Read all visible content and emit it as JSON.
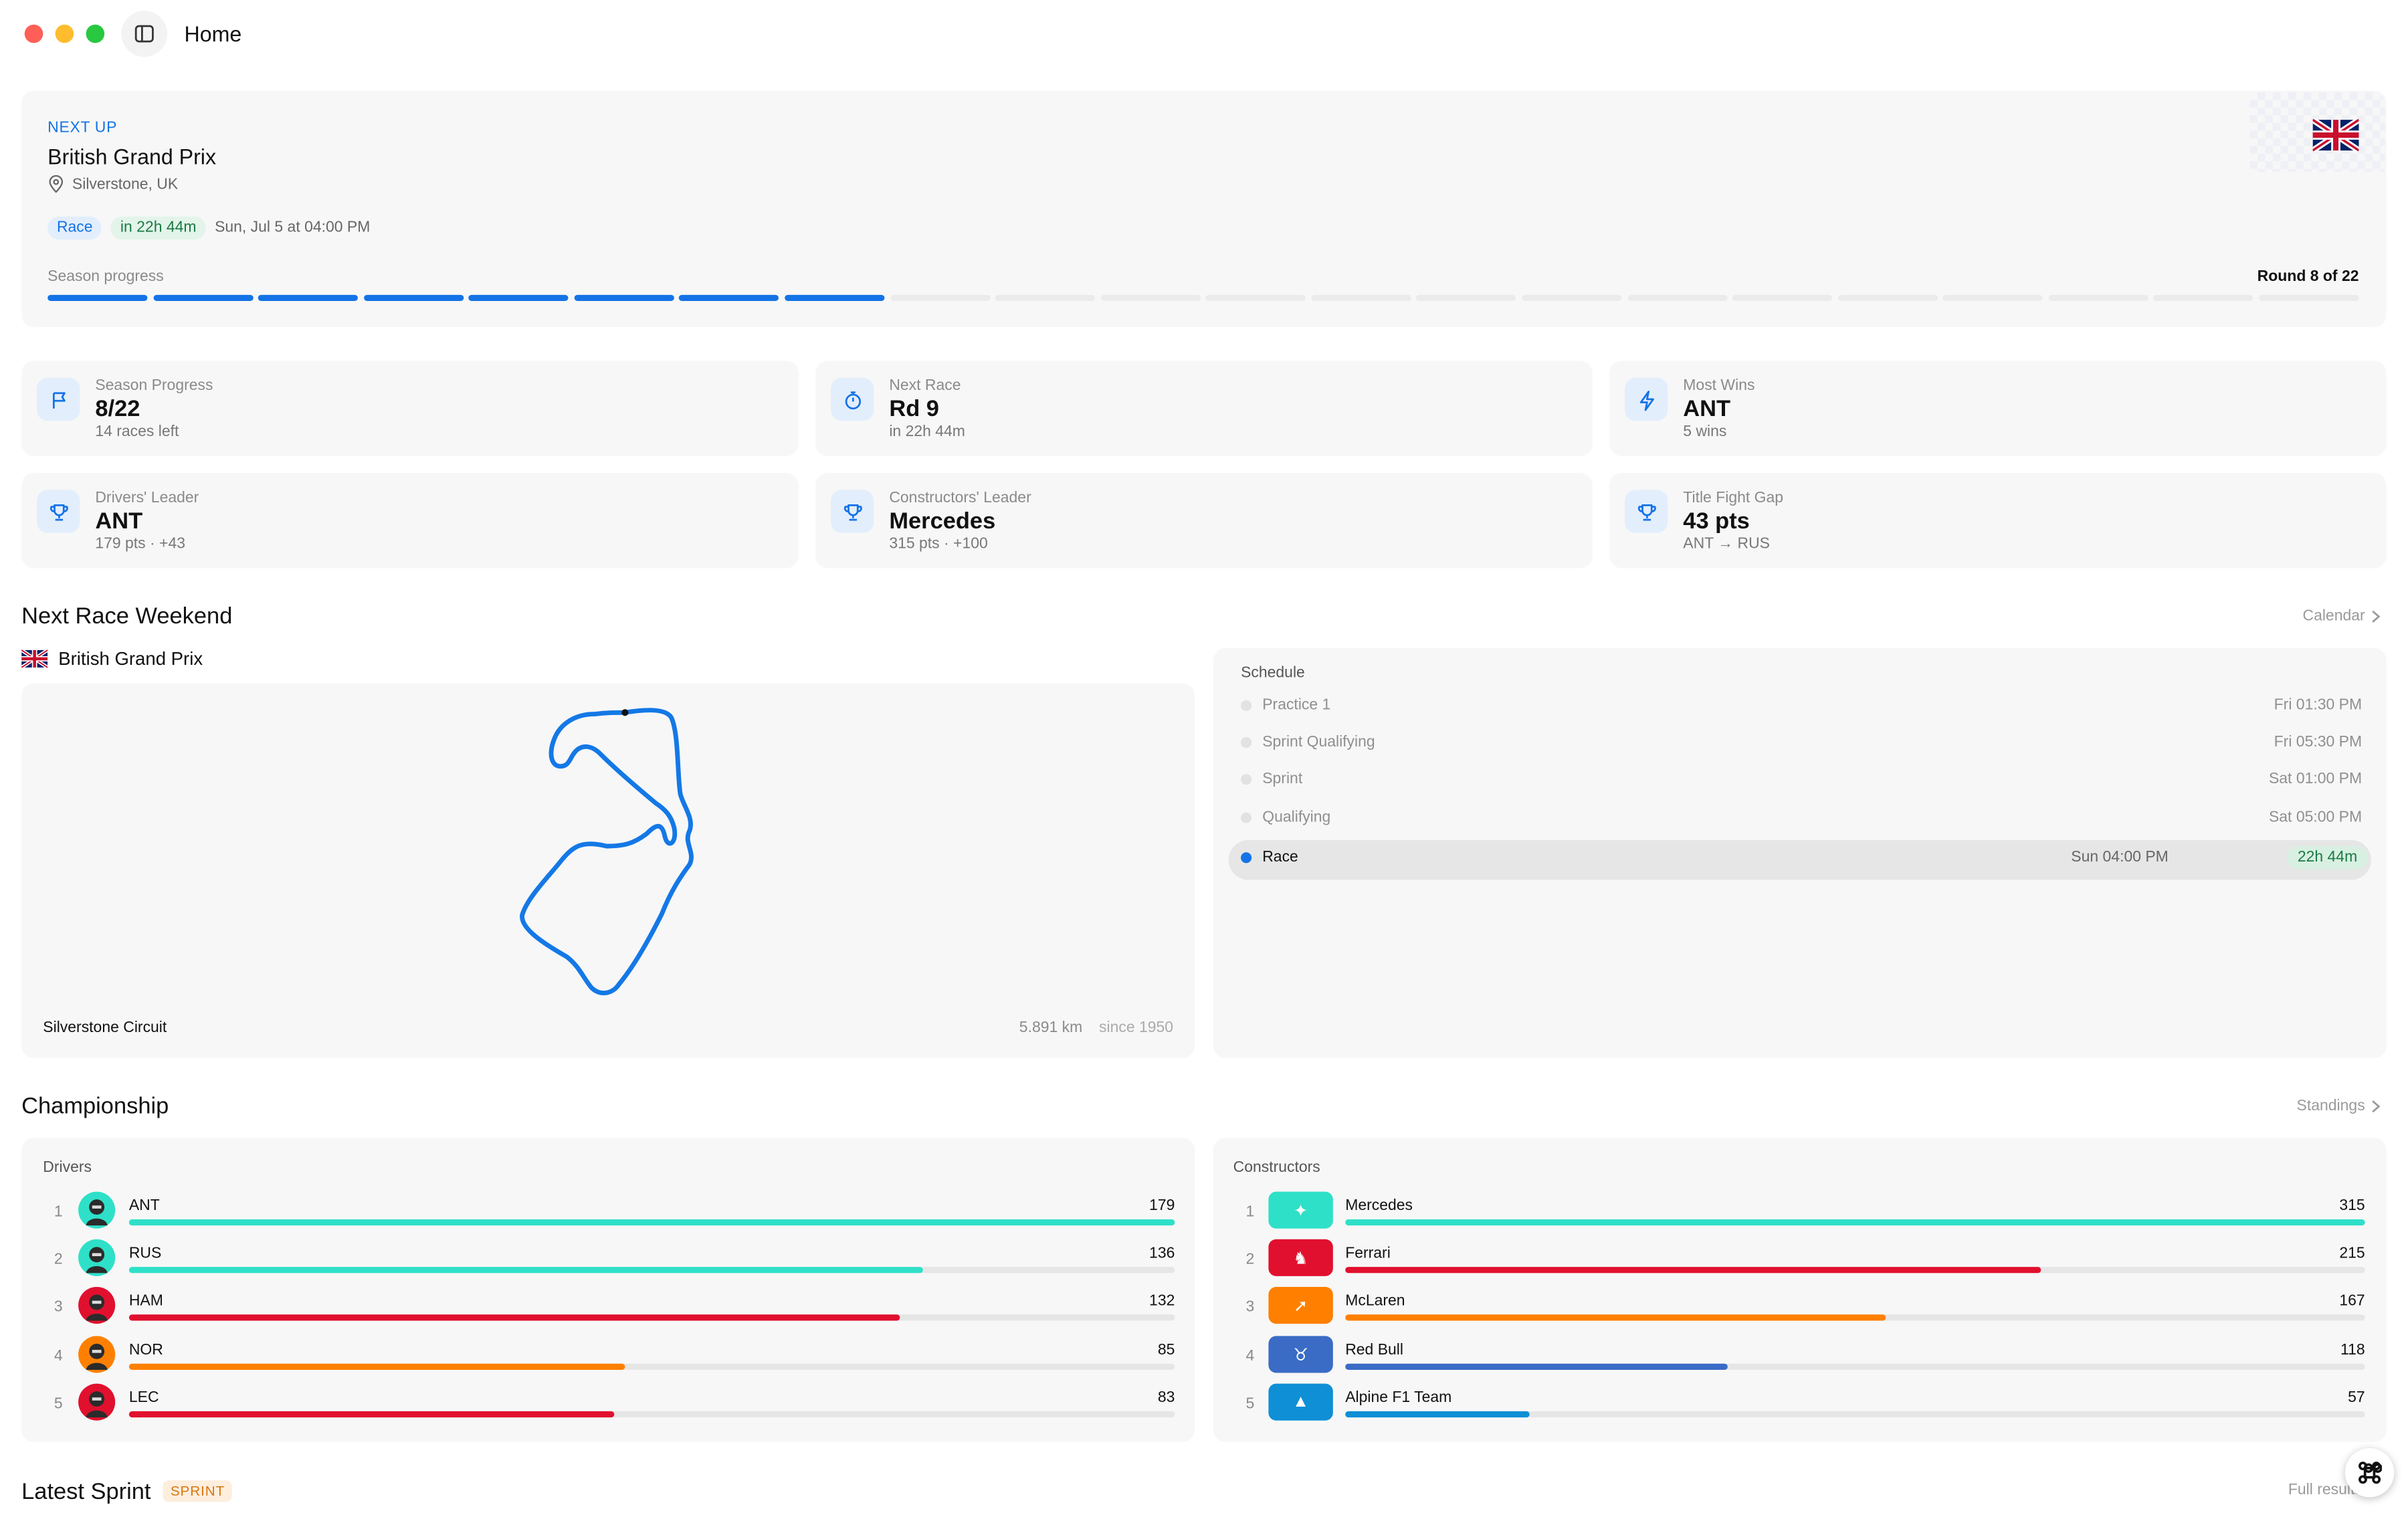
{
  "window": {
    "title": "Home"
  },
  "next_up": {
    "eyebrow": "NEXT UP",
    "title": "British Grand Prix",
    "location": "Silverstone, UK",
    "badge_session": "Race",
    "badge_countdown": "in 22h 44m",
    "datetime": "Sun, Jul 5 at 04:00 PM",
    "progress_label": "Season progress",
    "round_label": "Round 8 of 22",
    "rounds_completed": 8,
    "rounds_total": 22,
    "flag_icon": "uk-flag-icon",
    "colors": {
      "accent": "#1473e6",
      "segment_empty": "#ebebeb"
    }
  },
  "stats": [
    {
      "icon": "flag-icon",
      "label": "Season Progress",
      "value": "8/22",
      "sub": "14 races left"
    },
    {
      "icon": "stopwatch-icon",
      "label": "Next Race",
      "value": "Rd 9",
      "sub": "in 22h 44m"
    },
    {
      "icon": "lightning-icon",
      "label": "Most Wins",
      "value": "ANT",
      "sub": "5 wins"
    },
    {
      "icon": "trophy-icon",
      "label": "Drivers' Leader",
      "value": "ANT",
      "sub": "179 pts · +43"
    },
    {
      "icon": "trophy-icon",
      "label": "Constructors' Leader",
      "value": "Mercedes",
      "sub": "315 pts · +100"
    },
    {
      "icon": "trophy-icon",
      "label": "Title Fight Gap",
      "value": "43 pts",
      "sub": "ANT → RUS"
    }
  ],
  "weekend": {
    "section_title": "Next Race Weekend",
    "link": "Calendar",
    "race_name": "British Grand Prix",
    "circuit_name": "Silverstone Circuit",
    "length": "5.891 km",
    "since": "since 1950",
    "schedule_title": "Schedule",
    "sessions": [
      {
        "name": "Practice 1",
        "time": "Fri 01:30 PM",
        "countdown": "",
        "active": false
      },
      {
        "name": "Sprint Qualifying",
        "time": "Fri 05:30 PM",
        "countdown": "",
        "active": false
      },
      {
        "name": "Sprint",
        "time": "Sat 01:00 PM",
        "countdown": "",
        "active": false
      },
      {
        "name": "Qualifying",
        "time": "Sat 05:00 PM",
        "countdown": "",
        "active": false
      },
      {
        "name": "Race",
        "time": "Sun 04:00 PM",
        "countdown": "22h 44m",
        "active": true
      }
    ]
  },
  "championship": {
    "section_title": "Championship",
    "link": "Standings",
    "drivers_title": "Drivers",
    "constructors_title": "Constructors",
    "max_driver_points": 179,
    "max_constructor_points": 315,
    "drivers": [
      {
        "rank": "1",
        "code": "ANT",
        "points": 179,
        "color": "#2fe0c8"
      },
      {
        "rank": "2",
        "code": "RUS",
        "points": 136,
        "color": "#2fe0c8"
      },
      {
        "rank": "3",
        "code": "HAM",
        "points": 132,
        "color": "#e1102e"
      },
      {
        "rank": "4",
        "code": "NOR",
        "points": 85,
        "color": "#ff8000"
      },
      {
        "rank": "5",
        "code": "LEC",
        "points": 83,
        "color": "#e1102e"
      }
    ],
    "constructors": [
      {
        "rank": "1",
        "name": "Mercedes",
        "points": 315,
        "color": "#2fe0c8",
        "icon": "mercedes-star-icon"
      },
      {
        "rank": "2",
        "name": "Ferrari",
        "points": 215,
        "color": "#e1102e",
        "icon": "ferrari-horse-icon"
      },
      {
        "rank": "3",
        "name": "McLaren",
        "points": 167,
        "color": "#ff8000",
        "icon": "mclaren-swoosh-icon"
      },
      {
        "rank": "4",
        "name": "Red Bull",
        "points": 118,
        "color": "#3a6cc6",
        "icon": "red-bull-icon"
      },
      {
        "rank": "5",
        "name": "Alpine F1 Team",
        "points": 57,
        "color": "#0f8fd6",
        "icon": "alpine-icon"
      }
    ]
  },
  "latest": {
    "section_title": "Latest Sprint",
    "badge": "SPRINT",
    "link": "Full results"
  }
}
